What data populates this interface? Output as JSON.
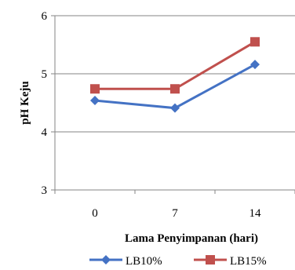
{
  "chart_data": {
    "type": "line",
    "xlabel": "Lama Penyimpanan (hari)",
    "ylabel": "pH Keju",
    "categories": [
      "0",
      "7",
      "14"
    ],
    "y_ticks": [
      "3",
      "4",
      "5",
      "6"
    ],
    "ylim": [
      3,
      6
    ],
    "grid": {
      "horizontal": true,
      "vertical": false
    },
    "legend_position": "bottom",
    "series": [
      {
        "name": "LB10%",
        "values": [
          4.54,
          4.41,
          5.16
        ],
        "color": "#4472C4",
        "marker": "diamond"
      },
      {
        "name": "LB15%",
        "values": [
          4.74,
          4.74,
          5.55
        ],
        "color": "#C0504D",
        "marker": "square"
      }
    ]
  }
}
